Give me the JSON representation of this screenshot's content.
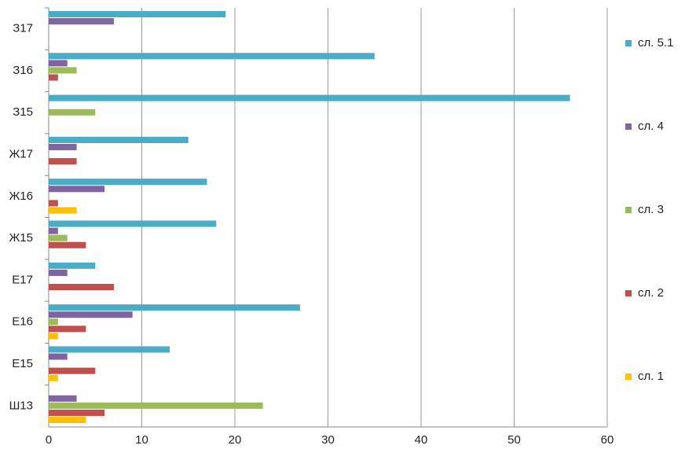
{
  "chart_data": {
    "type": "hbar",
    "categories": [
      "Ш13",
      "Е15",
      "Е16",
      "Е17",
      "Ж15",
      "Ж16",
      "Ж17",
      "З15",
      "З16",
      "З17"
    ],
    "series": [
      {
        "name": "сл. 5.1",
        "color": "#4bacc6",
        "values": [
          0,
          13,
          27,
          5,
          18,
          17,
          15,
          56,
          35,
          19
        ]
      },
      {
        "name": "сл. 4",
        "color": "#8064a2",
        "values": [
          3,
          2,
          9,
          2,
          1,
          6,
          3,
          0,
          2,
          7
        ]
      },
      {
        "name": "сл. 3",
        "color": "#9bbb59",
        "values": [
          23,
          0,
          1,
          0,
          2,
          0,
          0,
          5,
          3,
          0
        ]
      },
      {
        "name": "сл. 2",
        "color": "#c0504d",
        "values": [
          6,
          5,
          4,
          7,
          4,
          1,
          3,
          0,
          1,
          0
        ]
      },
      {
        "name": "сл. 1",
        "color": "#ffc000",
        "values": [
          4,
          1,
          1,
          0,
          0,
          3,
          0,
          0,
          0,
          0
        ]
      }
    ],
    "xlim": [
      0,
      60
    ],
    "xticks": [
      0,
      10,
      20,
      30,
      40,
      50,
      60
    ],
    "grid": true,
    "legend": "right"
  }
}
